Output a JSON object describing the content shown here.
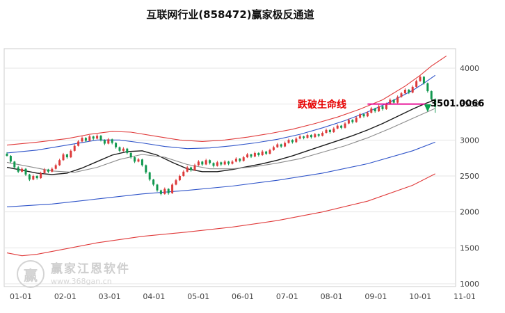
{
  "page": {
    "title": "互联网行业(858472)赢家极反通道"
  },
  "watermark": {
    "logo_char": "赢",
    "brand": "赢家江恩软件",
    "url": "www.368gan.cn"
  },
  "chart_data": {
    "type": "candlestick",
    "title": "互联网行业(858472)赢家极反通道",
    "x_axis": {
      "labels": [
        "01-01",
        "02-01",
        "03-01",
        "04-01",
        "05-01",
        "06-01",
        "07-01",
        "08-01",
        "09-01",
        "10-01",
        "11-01"
      ]
    },
    "y_axis": {
      "min": 1000,
      "max": 4000,
      "ticks": [
        1000,
        1500,
        2000,
        2500,
        3000,
        3500,
        4000
      ]
    },
    "colors": {
      "up": "#dd3a3a",
      "down": "#11984f",
      "grid": "#e4e4e4",
      "axis_text": "#444444"
    },
    "candles": [
      [
        2810,
        2830,
        2770,
        2780
      ],
      [
        2780,
        2790,
        2680,
        2700
      ],
      [
        2700,
        2710,
        2600,
        2620
      ],
      [
        2620,
        2640,
        2540,
        2560
      ],
      [
        2560,
        2620,
        2550,
        2600
      ],
      [
        2600,
        2610,
        2500,
        2520
      ],
      [
        2520,
        2530,
        2430,
        2450
      ],
      [
        2450,
        2520,
        2440,
        2500
      ],
      [
        2500,
        2510,
        2450,
        2470
      ],
      [
        2470,
        2560,
        2460,
        2540
      ],
      [
        2540,
        2610,
        2530,
        2590
      ],
      [
        2590,
        2600,
        2540,
        2560
      ],
      [
        2560,
        2620,
        2550,
        2600
      ],
      [
        2600,
        2670,
        2590,
        2650
      ],
      [
        2650,
        2740,
        2640,
        2720
      ],
      [
        2720,
        2820,
        2710,
        2800
      ],
      [
        2800,
        2810,
        2740,
        2760
      ],
      [
        2760,
        2870,
        2750,
        2850
      ],
      [
        2850,
        2940,
        2840,
        2920
      ],
      [
        2920,
        3000,
        2910,
        2980
      ],
      [
        2980,
        3050,
        2970,
        3030
      ],
      [
        3030,
        3040,
        2970,
        2990
      ],
      [
        2990,
        3070,
        2980,
        3050
      ],
      [
        3050,
        3060,
        3000,
        3020
      ],
      [
        3020,
        3080,
        3010,
        3060
      ],
      [
        3060,
        3070,
        2980,
        3000
      ],
      [
        3000,
        3010,
        2930,
        2950
      ],
      [
        2950,
        3030,
        2940,
        3010
      ],
      [
        3010,
        3020,
        2940,
        2960
      ],
      [
        2960,
        2970,
        2880,
        2900
      ],
      [
        2900,
        2910,
        2830,
        2850
      ],
      [
        2850,
        2900,
        2840,
        2880
      ],
      [
        2880,
        2890,
        2800,
        2820
      ],
      [
        2820,
        2830,
        2740,
        2760
      ],
      [
        2760,
        2770,
        2680,
        2700
      ],
      [
        2700,
        2750,
        2690,
        2730
      ],
      [
        2730,
        2740,
        2630,
        2650
      ],
      [
        2650,
        2660,
        2530,
        2550
      ],
      [
        2550,
        2560,
        2430,
        2450
      ],
      [
        2450,
        2460,
        2360,
        2380
      ],
      [
        2380,
        2390,
        2280,
        2300
      ],
      [
        2300,
        2310,
        2230,
        2250
      ],
      [
        2250,
        2340,
        2240,
        2320
      ],
      [
        2320,
        2330,
        2240,
        2260
      ],
      [
        2260,
        2400,
        2250,
        2380
      ],
      [
        2380,
        2460,
        2370,
        2440
      ],
      [
        2440,
        2520,
        2430,
        2500
      ],
      [
        2500,
        2580,
        2490,
        2560
      ],
      [
        2560,
        2640,
        2550,
        2620
      ],
      [
        2620,
        2630,
        2560,
        2580
      ],
      [
        2580,
        2670,
        2570,
        2650
      ],
      [
        2650,
        2720,
        2640,
        2700
      ],
      [
        2700,
        2710,
        2640,
        2660
      ],
      [
        2660,
        2740,
        2650,
        2720
      ],
      [
        2720,
        2730,
        2660,
        2680
      ],
      [
        2680,
        2690,
        2620,
        2640
      ],
      [
        2640,
        2710,
        2630,
        2690
      ],
      [
        2690,
        2700,
        2640,
        2660
      ],
      [
        2660,
        2720,
        2650,
        2700
      ],
      [
        2700,
        2710,
        2650,
        2670
      ],
      [
        2670,
        2720,
        2660,
        2700
      ],
      [
        2700,
        2760,
        2690,
        2740
      ],
      [
        2740,
        2750,
        2690,
        2710
      ],
      [
        2710,
        2780,
        2700,
        2760
      ],
      [
        2760,
        2820,
        2750,
        2800
      ],
      [
        2800,
        2810,
        2750,
        2770
      ],
      [
        2770,
        2840,
        2760,
        2820
      ],
      [
        2820,
        2830,
        2770,
        2790
      ],
      [
        2790,
        2860,
        2780,
        2840
      ],
      [
        2840,
        2850,
        2790,
        2810
      ],
      [
        2810,
        2880,
        2800,
        2860
      ],
      [
        2860,
        2920,
        2850,
        2900
      ],
      [
        2900,
        2960,
        2890,
        2940
      ],
      [
        2940,
        2950,
        2890,
        2910
      ],
      [
        2910,
        2980,
        2900,
        2960
      ],
      [
        2960,
        3020,
        2950,
        3000
      ],
      [
        3000,
        3010,
        2950,
        2970
      ],
      [
        2970,
        3040,
        2960,
        3020
      ],
      [
        3020,
        3070,
        3010,
        3050
      ],
      [
        3050,
        3060,
        3010,
        3030
      ],
      [
        3030,
        3090,
        3020,
        3070
      ],
      [
        3070,
        3080,
        3020,
        3040
      ],
      [
        3040,
        3100,
        3030,
        3080
      ],
      [
        3080,
        3090,
        3040,
        3060
      ],
      [
        3060,
        3120,
        3050,
        3100
      ],
      [
        3100,
        3160,
        3090,
        3140
      ],
      [
        3140,
        3150,
        3090,
        3110
      ],
      [
        3110,
        3180,
        3100,
        3160
      ],
      [
        3160,
        3220,
        3150,
        3200
      ],
      [
        3200,
        3210,
        3150,
        3170
      ],
      [
        3170,
        3250,
        3160,
        3230
      ],
      [
        3230,
        3300,
        3220,
        3280
      ],
      [
        3280,
        3290,
        3230,
        3250
      ],
      [
        3250,
        3330,
        3240,
        3310
      ],
      [
        3310,
        3380,
        3300,
        3360
      ],
      [
        3360,
        3370,
        3310,
        3330
      ],
      [
        3330,
        3400,
        3320,
        3380
      ],
      [
        3380,
        3460,
        3370,
        3440
      ],
      [
        3440,
        3450,
        3380,
        3400
      ],
      [
        3400,
        3490,
        3390,
        3470
      ],
      [
        3470,
        3480,
        3410,
        3430
      ],
      [
        3430,
        3520,
        3420,
        3500
      ],
      [
        3500,
        3580,
        3490,
        3560
      ],
      [
        3560,
        3570,
        3500,
        3520
      ],
      [
        3520,
        3620,
        3510,
        3600
      ],
      [
        3600,
        3670,
        3590,
        3650
      ],
      [
        3650,
        3720,
        3640,
        3700
      ],
      [
        3700,
        3710,
        3640,
        3660
      ],
      [
        3660,
        3760,
        3650,
        3740
      ],
      [
        3740,
        3840,
        3730,
        3820
      ],
      [
        3820,
        3900,
        3810,
        3880
      ],
      [
        3880,
        3890,
        3770,
        3790
      ],
      [
        3790,
        3800,
        3660,
        3680
      ],
      [
        3680,
        3690,
        3550,
        3570
      ],
      [
        3570,
        3580,
        3380,
        3460
      ]
    ],
    "lines": [
      {
        "name": "upper-red-channel",
        "color": "#e03a3a",
        "points": [
          [
            0,
            2930
          ],
          [
            8,
            2970
          ],
          [
            16,
            3020
          ],
          [
            22,
            3080
          ],
          [
            28,
            3120
          ],
          [
            33,
            3110
          ],
          [
            40,
            3050
          ],
          [
            46,
            3000
          ],
          [
            52,
            2980
          ],
          [
            58,
            3000
          ],
          [
            64,
            3040
          ],
          [
            70,
            3090
          ],
          [
            76,
            3150
          ],
          [
            82,
            3230
          ],
          [
            88,
            3320
          ],
          [
            94,
            3430
          ],
          [
            100,
            3560
          ],
          [
            106,
            3750
          ],
          [
            110,
            3900
          ],
          [
            113,
            4030
          ],
          [
            117,
            4170
          ]
        ]
      },
      {
        "name": "upper-blue-channel",
        "color": "#2f54c9",
        "points": [
          [
            0,
            2820
          ],
          [
            8,
            2860
          ],
          [
            16,
            2930
          ],
          [
            24,
            3000
          ],
          [
            30,
            3000
          ],
          [
            36,
            2960
          ],
          [
            42,
            2910
          ],
          [
            48,
            2880
          ],
          [
            54,
            2890
          ],
          [
            60,
            2920
          ],
          [
            66,
            2960
          ],
          [
            72,
            3010
          ],
          [
            78,
            3080
          ],
          [
            84,
            3170
          ],
          [
            90,
            3270
          ],
          [
            96,
            3390
          ],
          [
            102,
            3530
          ],
          [
            108,
            3690
          ],
          [
            111,
            3790
          ],
          [
            114,
            3900
          ]
        ]
      },
      {
        "name": "life-line",
        "color": "#1a1a1a",
        "points": [
          [
            0,
            2620
          ],
          [
            4,
            2580
          ],
          [
            8,
            2540
          ],
          [
            12,
            2520
          ],
          [
            16,
            2540
          ],
          [
            20,
            2610
          ],
          [
            24,
            2700
          ],
          [
            28,
            2790
          ],
          [
            32,
            2840
          ],
          [
            36,
            2850
          ],
          [
            40,
            2790
          ],
          [
            44,
            2690
          ],
          [
            48,
            2600
          ],
          [
            52,
            2560
          ],
          [
            56,
            2560
          ],
          [
            60,
            2590
          ],
          [
            64,
            2630
          ],
          [
            68,
            2670
          ],
          [
            72,
            2720
          ],
          [
            76,
            2780
          ],
          [
            80,
            2850
          ],
          [
            84,
            2920
          ],
          [
            88,
            2990
          ],
          [
            92,
            3060
          ],
          [
            96,
            3140
          ],
          [
            100,
            3230
          ],
          [
            104,
            3330
          ],
          [
            108,
            3430
          ],
          [
            111,
            3500
          ],
          [
            114,
            3560
          ]
        ]
      },
      {
        "name": "secondary-ma-line",
        "color": "#8a8a8a",
        "points": [
          [
            0,
            2690
          ],
          [
            6,
            2630
          ],
          [
            12,
            2570
          ],
          [
            18,
            2550
          ],
          [
            24,
            2620
          ],
          [
            30,
            2730
          ],
          [
            36,
            2800
          ],
          [
            42,
            2760
          ],
          [
            48,
            2660
          ],
          [
            54,
            2600
          ],
          [
            60,
            2600
          ],
          [
            66,
            2630
          ],
          [
            72,
            2680
          ],
          [
            78,
            2740
          ],
          [
            84,
            2830
          ],
          [
            90,
            2920
          ],
          [
            96,
            3030
          ],
          [
            102,
            3160
          ],
          [
            108,
            3300
          ],
          [
            114,
            3440
          ]
        ]
      },
      {
        "name": "lower-blue-channel",
        "color": "#2f54c9",
        "points": [
          [
            0,
            2070
          ],
          [
            12,
            2110
          ],
          [
            24,
            2180
          ],
          [
            36,
            2250
          ],
          [
            48,
            2300
          ],
          [
            60,
            2360
          ],
          [
            72,
            2440
          ],
          [
            84,
            2540
          ],
          [
            96,
            2670
          ],
          [
            108,
            2850
          ],
          [
            114,
            2970
          ]
        ]
      },
      {
        "name": "lower-red-channel",
        "color": "#e03a3a",
        "points": [
          [
            0,
            1430
          ],
          [
            4,
            1390
          ],
          [
            8,
            1410
          ],
          [
            14,
            1470
          ],
          [
            24,
            1570
          ],
          [
            36,
            1660
          ],
          [
            48,
            1720
          ],
          [
            60,
            1790
          ],
          [
            72,
            1880
          ],
          [
            84,
            2000
          ],
          [
            96,
            2150
          ],
          [
            108,
            2370
          ],
          [
            114,
            2530
          ]
        ]
      }
    ],
    "break_line": {
      "label": "跌破生命线",
      "value": 3501.0066,
      "display": "3501.0066",
      "color": "#e81296",
      "from_index": 96,
      "to_index": 111.5
    },
    "marker": {
      "index": 112,
      "value": 3390,
      "color": "#0aa14e"
    }
  }
}
